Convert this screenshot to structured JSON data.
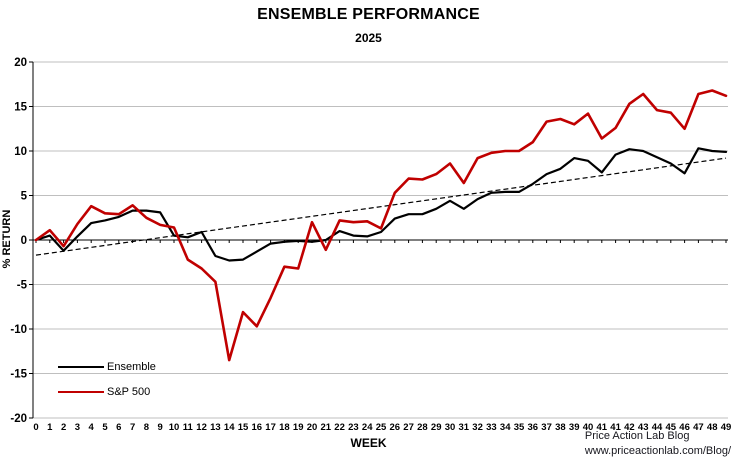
{
  "title": "ENSEMBLE PERFORMANCE",
  "subtitle": "2025",
  "y_axis": {
    "label": "% RETURN",
    "ticks": [
      20,
      15,
      10,
      5,
      0,
      -5,
      -10,
      -15,
      -20
    ]
  },
  "x_axis": {
    "label": "WEEK",
    "tick_labels": [
      "0",
      "1",
      "2",
      "3",
      "4",
      "5",
      "6",
      "7",
      "8",
      "9",
      "10",
      "11",
      "12",
      "13",
      "14",
      "15",
      "16",
      "17",
      "18",
      "19",
      "20",
      "21",
      "22",
      "23",
      "24",
      "25",
      "26",
      "27",
      "28",
      "29",
      "30",
      "31",
      "32",
      "33",
      "34",
      "35",
      "36",
      "37",
      "38",
      "39",
      "40",
      "41",
      "41",
      "42",
      "43",
      "44",
      "45",
      "46",
      "47",
      "48",
      "49"
    ]
  },
  "legend": [
    {
      "name": "Ensemble",
      "color": "#000000"
    },
    {
      "name": "S&P 500",
      "color": "#C00000"
    }
  ],
  "credits": {
    "line1": "Price Action Lab Blog",
    "line2": "www.priceactionlab.com/Blog/"
  },
  "colors": {
    "grid": "#BFBFBF",
    "axis": "#000000",
    "ensemble": "#000000",
    "sp500": "#C00000",
    "trendline": "#000000"
  },
  "chart_data": {
    "type": "line",
    "title": "ENSEMBLE PERFORMANCE",
    "subtitle": "2025",
    "xlabel": "WEEK",
    "ylabel": "% RETURN",
    "ylim": [
      -20,
      20
    ],
    "y_tick_step": 5,
    "grid": true,
    "legend_position": "inside bottom-left",
    "categories": [
      "0",
      "1",
      "2",
      "3",
      "4",
      "5",
      "6",
      "7",
      "8",
      "9",
      "10",
      "11",
      "12",
      "13",
      "14",
      "15",
      "16",
      "17",
      "18",
      "19",
      "20",
      "21",
      "22",
      "23",
      "24",
      "25",
      "26",
      "27",
      "28",
      "29",
      "30",
      "31",
      "32",
      "33",
      "34",
      "35",
      "36",
      "37",
      "38",
      "39",
      "40",
      "41",
      "41",
      "42",
      "43",
      "44",
      "45",
      "46",
      "47",
      "48",
      "49"
    ],
    "series": [
      {
        "name": "Ensemble",
        "color": "#000000",
        "values": [
          0,
          0.5,
          -1.2,
          0.4,
          1.9,
          2.2,
          2.6,
          3.3,
          3.3,
          3.1,
          0.5,
          0.3,
          0.9,
          -1.8,
          -2.3,
          -2.2,
          -1.3,
          -0.4,
          -0.2,
          -0.1,
          -0.2,
          0.0,
          1.0,
          0.5,
          0.4,
          0.9,
          2.4,
          2.9,
          2.9,
          3.5,
          4.4,
          3.5,
          4.6,
          5.3,
          5.4,
          5.4,
          6.3,
          7.4,
          8.0,
          9.2,
          8.9,
          7.6,
          9.6,
          10.2,
          10.0,
          9.3,
          8.6,
          7.5,
          10.3,
          10.0,
          9.9
        ]
      },
      {
        "name": "S&P 500",
        "color": "#C00000",
        "values": [
          0,
          1.1,
          -0.7,
          1.8,
          3.8,
          3.0,
          2.9,
          3.9,
          2.5,
          1.7,
          1.4,
          -2.2,
          -3.2,
          -4.7,
          -13.5,
          -8.1,
          -9.7,
          -6.5,
          -3.0,
          -3.2,
          2.0,
          -1.1,
          2.2,
          2.0,
          2.1,
          1.3,
          5.3,
          6.9,
          6.8,
          7.4,
          8.6,
          6.4,
          9.2,
          9.8,
          10.0,
          10.0,
          11.0,
          13.3,
          13.6,
          13.0,
          14.2,
          11.4,
          12.6,
          15.3,
          16.4,
          14.6,
          14.3,
          12.5,
          16.4,
          16.8,
          16.2
        ]
      }
    ],
    "trendline": {
      "style": "dashed",
      "start_value": -1.7,
      "end_value": 9.2
    }
  }
}
